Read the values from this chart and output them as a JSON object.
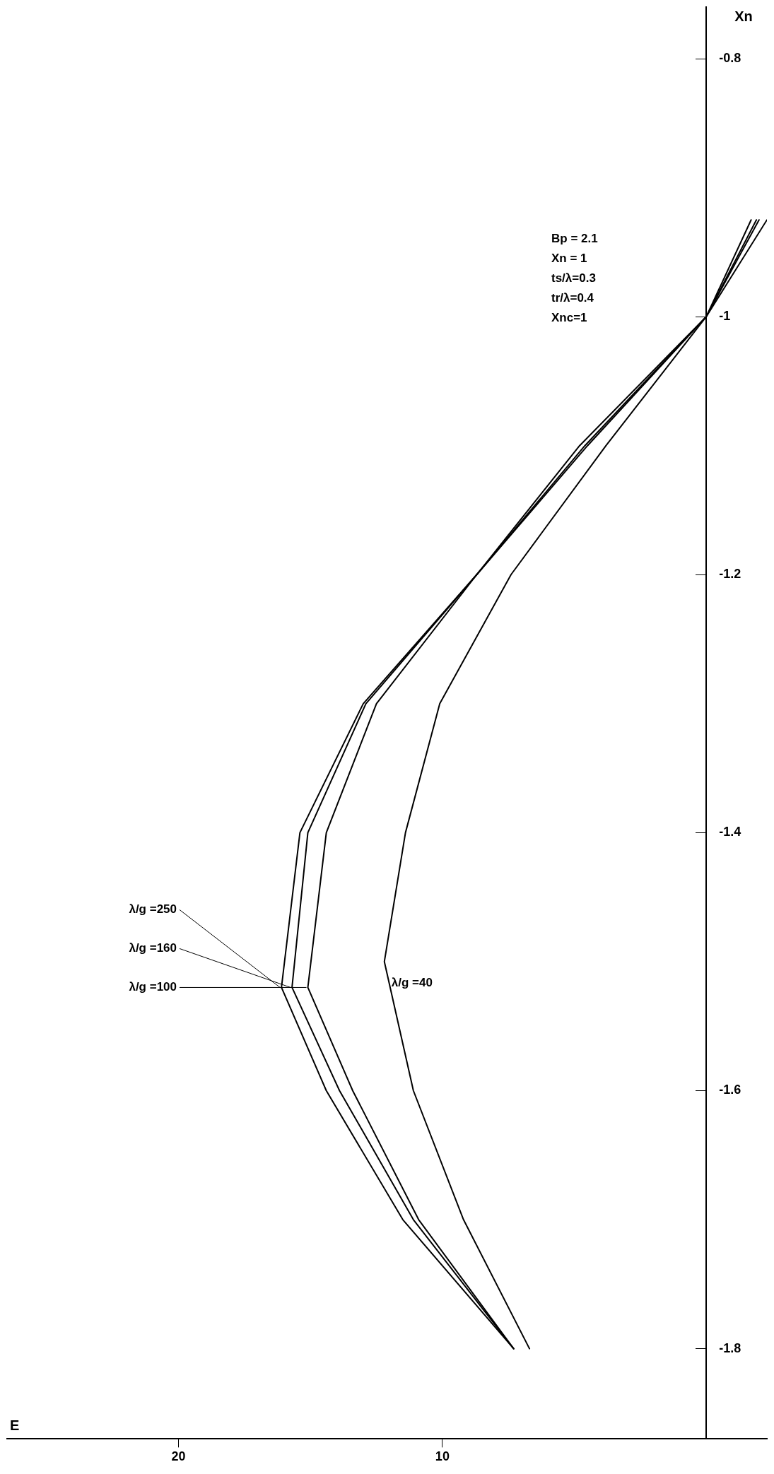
{
  "chart_data": {
    "type": "line",
    "xlabel": "E",
    "ylabel": "Xn",
    "series": [
      {
        "name": "λ/g =250",
        "color": "#000000",
        "x": [
          7.3,
          11.5,
          14.4,
          16.1,
          15.4,
          13.0,
          8.7,
          4.8,
          0.0,
          -2.3
        ],
        "values": [
          -1.8,
          -1.7,
          -1.6,
          -1.52,
          -1.4,
          -1.3,
          -1.2,
          -1.1,
          -1.0,
          -0.925
        ]
      },
      {
        "name": "λ/g =160",
        "color": "#000000",
        "x": [
          7.3,
          11.1,
          13.9,
          15.7,
          15.1,
          12.9,
          8.7,
          4.6,
          0.0,
          -2.0
        ],
        "values": [
          -1.8,
          -1.7,
          -1.6,
          -1.52,
          -1.4,
          -1.3,
          -1.2,
          -1.1,
          -1.0,
          -0.925
        ]
      },
      {
        "name": "λ/g =100",
        "color": "#000000",
        "x": [
          7.3,
          10.9,
          13.4,
          15.1,
          14.4,
          12.5,
          8.7,
          4.5,
          0.0,
          -1.9
        ],
        "values": [
          -1.8,
          -1.7,
          -1.6,
          -1.52,
          -1.4,
          -1.3,
          -1.2,
          -1.1,
          -1.0,
          -0.925
        ]
      },
      {
        "name": "λ/g =40",
        "color": "#000000",
        "x": [
          6.7,
          9.2,
          11.1,
          12.2,
          11.4,
          10.1,
          7.4,
          3.8,
          0.0,
          -1.7
        ],
        "values": [
          -1.8,
          -1.7,
          -1.6,
          -1.5,
          -1.4,
          -1.3,
          -1.2,
          -1.1,
          -1.0,
          -0.925
        ]
      }
    ],
    "xlim": [
      26.5,
      -2.3
    ],
    "xticks": [
      20,
      10
    ],
    "ylim": [
      -1.87,
      -0.76
    ],
    "yticks": [
      -1.8,
      -1.6,
      -1.4,
      -1.2,
      -1,
      -0.8
    ],
    "grid": false,
    "legend": false,
    "marker": "none",
    "line_style": "solid",
    "annotations": [
      "Bp = 2.1",
      "Xn = 1",
      "ts/λ=0.3",
      "tr/λ=0.4",
      "Xnc=1"
    ]
  }
}
